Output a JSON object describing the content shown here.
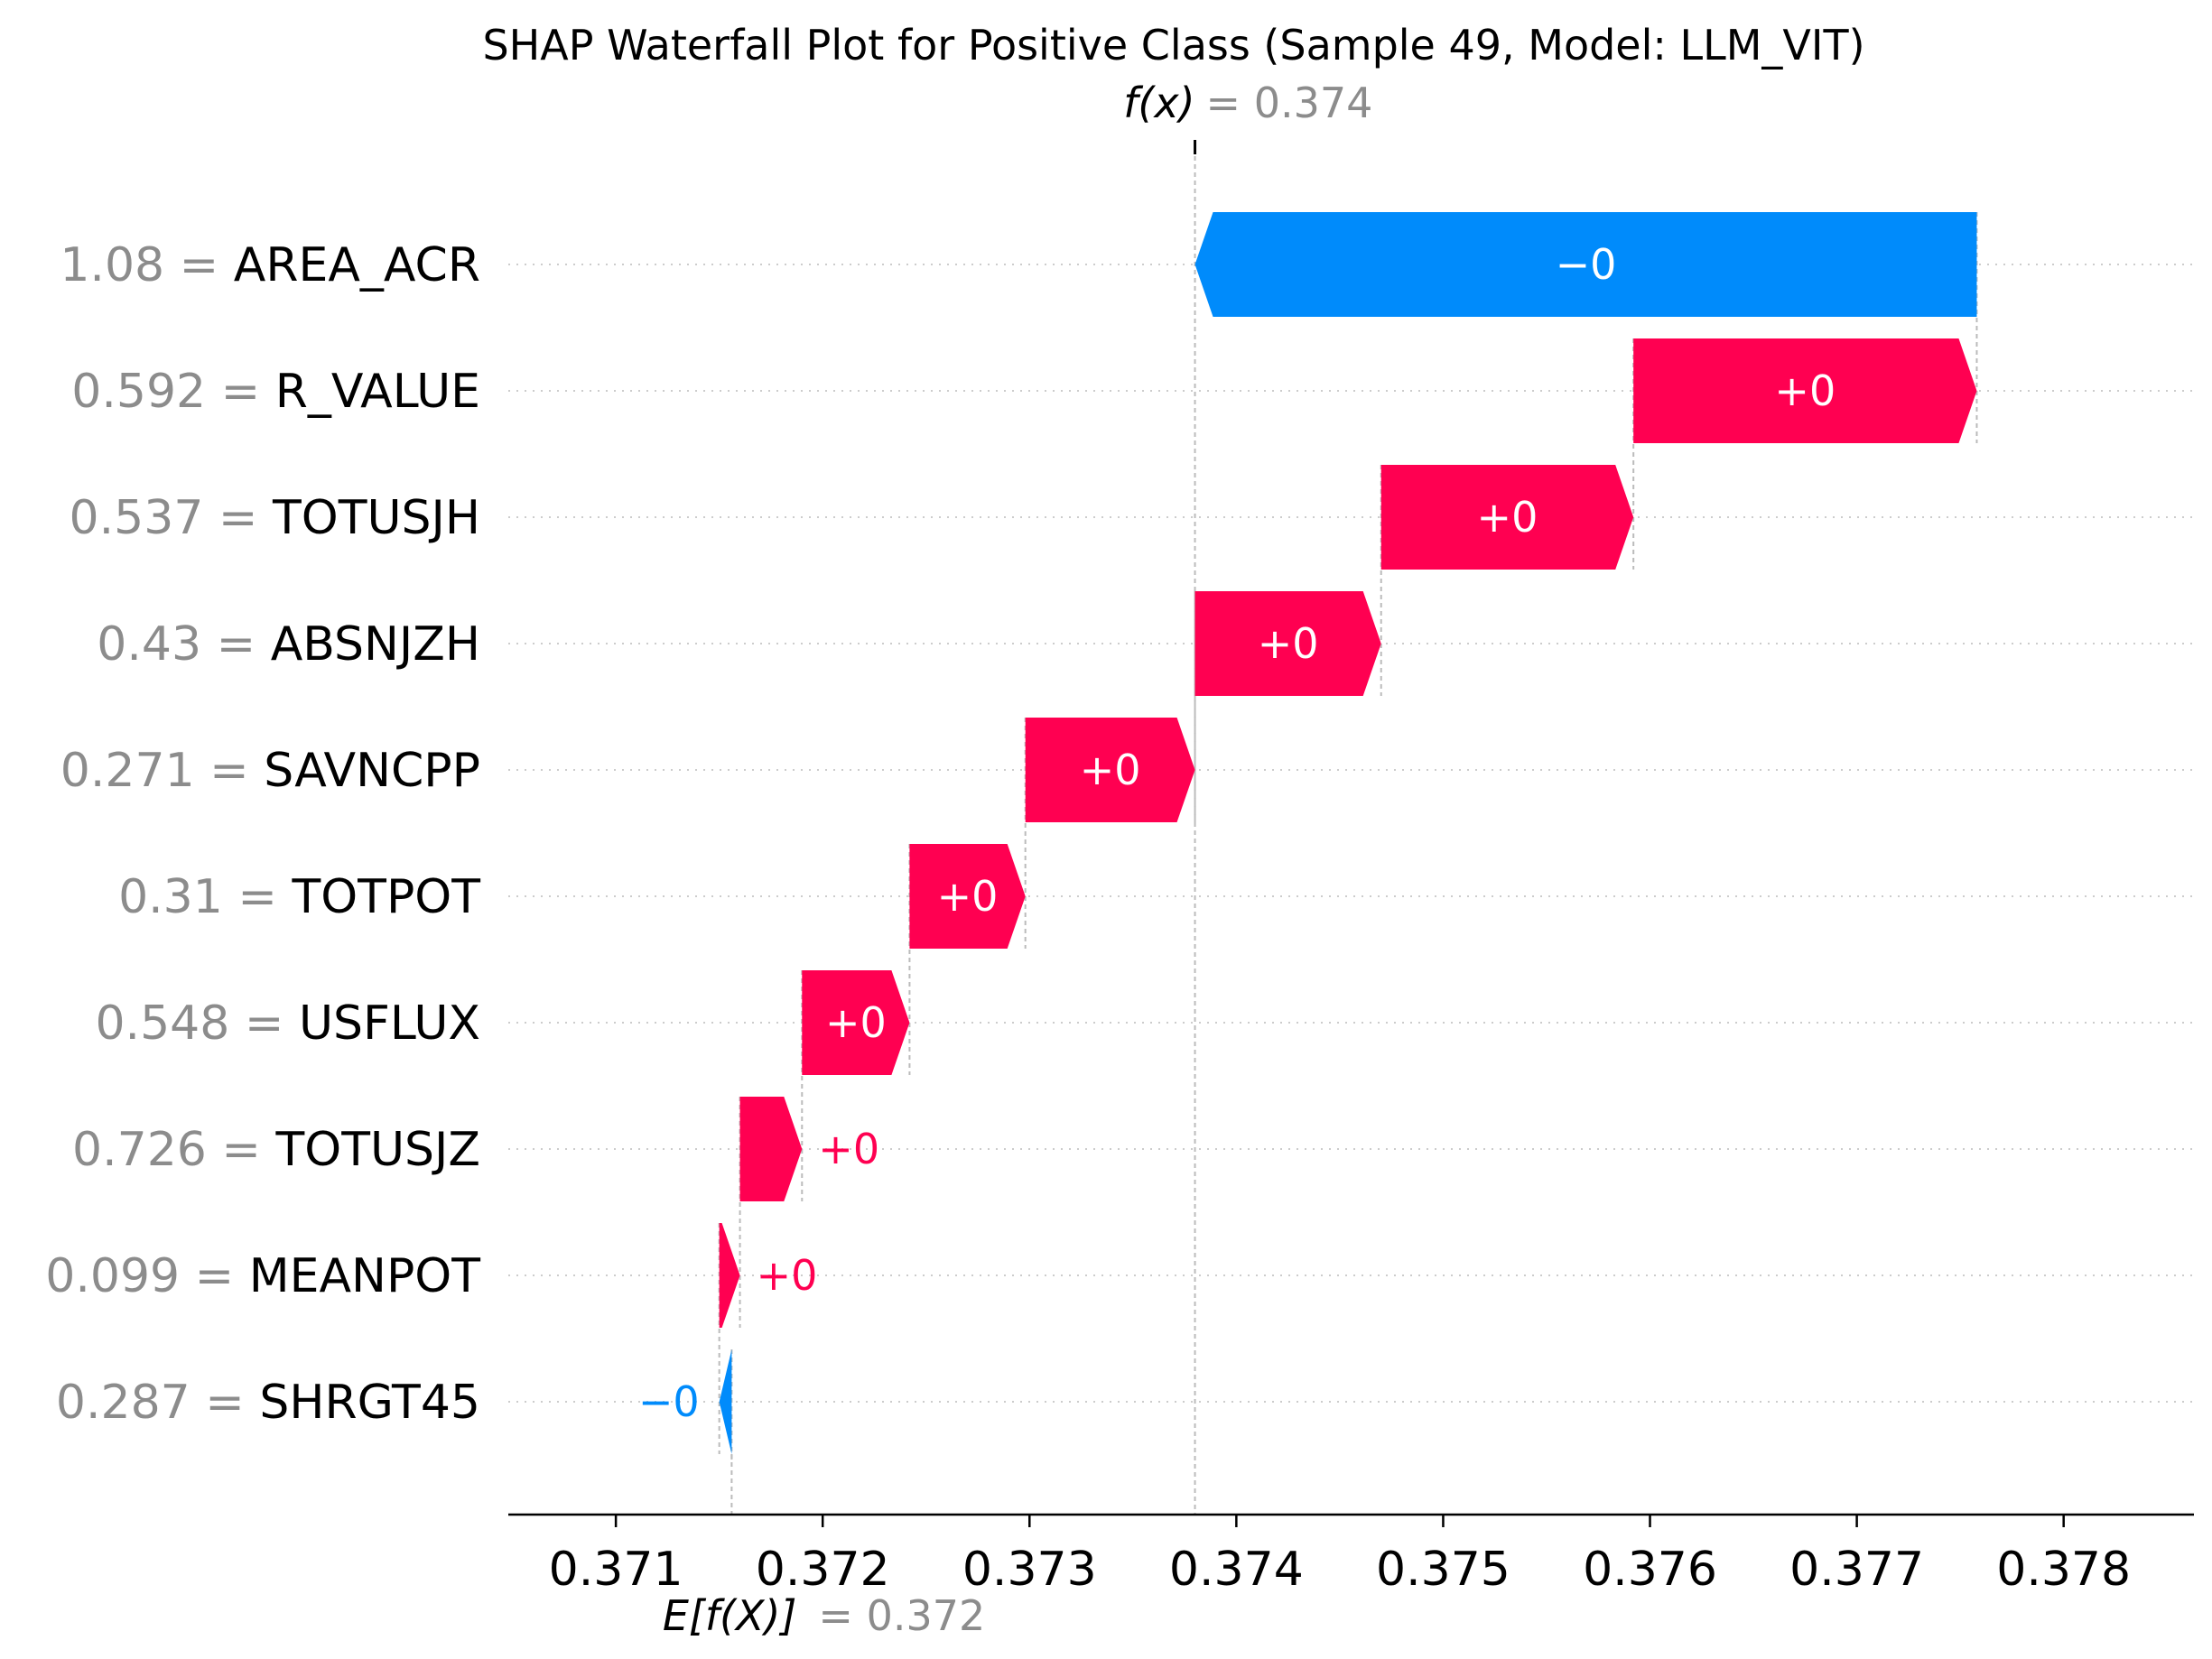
{
  "chart_data": {
    "type": "waterfall",
    "title": "SHAP Waterfall Plot for Positive Class (Sample 49, Model: LLM_VIT)",
    "fx": {
      "label": "f(x)",
      "equals": "=",
      "value": 0.3738,
      "value_text": "0.374"
    },
    "ex": {
      "label": "E[f(X)]",
      "equals": "=",
      "value": 0.37156,
      "value_text": "0.372"
    },
    "xlim": [
      0.37048,
      0.37863
    ],
    "xticks": [
      0.371,
      0.372,
      0.373,
      0.374,
      0.375,
      0.376,
      0.377,
      0.378
    ],
    "xtick_labels": [
      "0.371",
      "0.372",
      "0.373",
      "0.374",
      "0.375",
      "0.376",
      "0.377",
      "0.378"
    ],
    "colors": {
      "positive": "#ff0051",
      "negative": "#008bfb",
      "muted": "#8c8c8c"
    },
    "features": [
      {
        "value_text": "1.08",
        "name": "AREA_ACR",
        "start": 0.37758,
        "end": 0.3738,
        "label": "−0"
      },
      {
        "value_text": "0.592",
        "name": "R_VALUE",
        "start": 0.37592,
        "end": 0.37758,
        "label": "+0"
      },
      {
        "value_text": "0.537",
        "name": "TOTUSJH",
        "start": 0.3747,
        "end": 0.37592,
        "label": "+0"
      },
      {
        "value_text": "0.43",
        "name": "ABSNJZH",
        "start": 0.3738,
        "end": 0.3747,
        "label": "+0"
      },
      {
        "value_text": "0.271",
        "name": "SAVNCPP",
        "start": 0.37298,
        "end": 0.3738,
        "label": "+0"
      },
      {
        "value_text": "0.31",
        "name": "TOTPOT",
        "start": 0.37242,
        "end": 0.37298,
        "label": "+0"
      },
      {
        "value_text": "0.548",
        "name": "USFLUX",
        "start": 0.3719,
        "end": 0.37242,
        "label": "+0"
      },
      {
        "value_text": "0.726",
        "name": "TOTUSJZ",
        "start": 0.3716,
        "end": 0.3719,
        "label": "+0"
      },
      {
        "value_text": "0.099",
        "name": "MEANPOT",
        "start": 0.3715,
        "end": 0.3716,
        "label": "+0"
      },
      {
        "value_text": "0.287",
        "name": "SHRGT45",
        "start": 0.37156,
        "end": 0.3715,
        "label": "−0"
      }
    ]
  }
}
